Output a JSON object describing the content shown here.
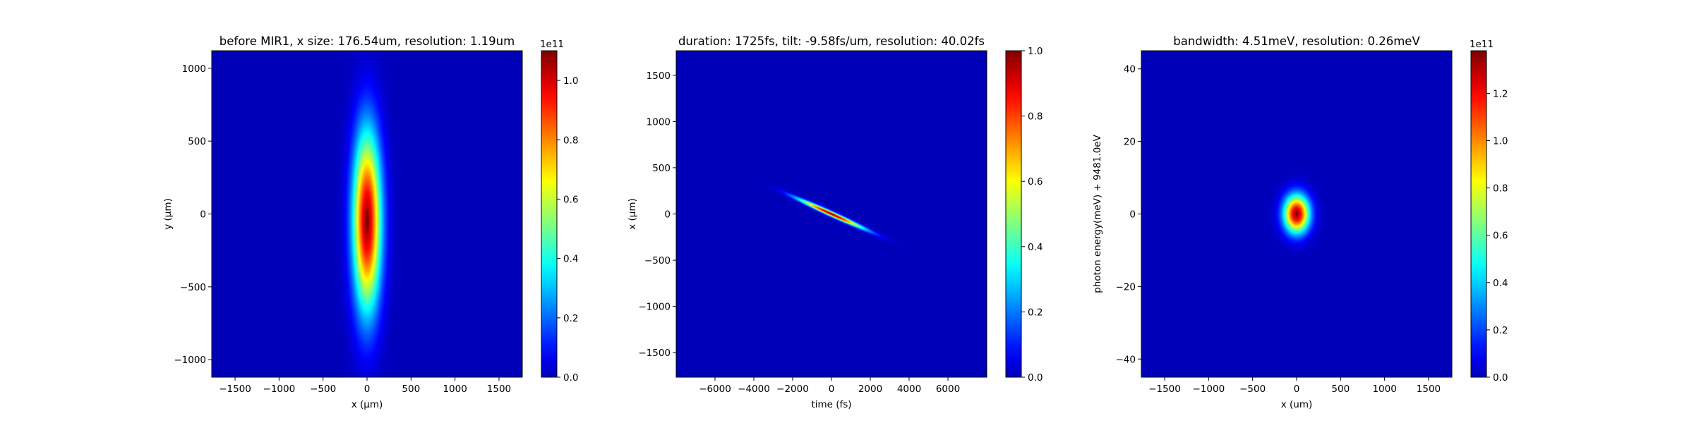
{
  "chart_data": [
    {
      "type": "heatmap",
      "title": "before MIR1, x size: 176.54um, resolution: 1.19um",
      "xlabel": "x (μm)",
      "ylabel": "y (μm)",
      "xlim": [
        -1765,
        1765
      ],
      "ylim": [
        -1120,
        1120
      ],
      "xticks": [
        -1500,
        -1000,
        -500,
        0,
        500,
        1000,
        1500
      ],
      "yticks": [
        -1000,
        -500,
        0,
        500,
        1000
      ],
      "peak": {
        "x": 0,
        "y": -50,
        "sx": 110,
        "sy": 420,
        "rho": 0
      },
      "colorbar": {
        "min": 0,
        "max": 1.1,
        "offset_label": "1e11",
        "ticks": [
          0.0,
          0.2,
          0.4,
          0.6,
          0.8,
          1.0
        ],
        "tick_labels": [
          "0.0",
          "0.2",
          "0.4",
          "0.6",
          "0.8",
          "1.0"
        ]
      },
      "colormap": "jet"
    },
    {
      "type": "heatmap",
      "title": "duration: 1725fs, tilt: -9.58fs/um, resolution: 40.02fs",
      "xlabel": "time (fs)",
      "ylabel": "x (μm)",
      "xlim": [
        -8000,
        8000
      ],
      "ylim": [
        -1765,
        1765
      ],
      "xticks": [
        -6000,
        -4000,
        -2000,
        0,
        2000,
        4000,
        6000
      ],
      "yticks": [
        -1500,
        -1000,
        -500,
        0,
        500,
        1000,
        1500
      ],
      "peak": {
        "x": 0,
        "y": 0,
        "sx": 1150,
        "sy": 110,
        "rho": -0.985
      },
      "colorbar": {
        "min": 0,
        "max": 1.0,
        "offset_label": "",
        "ticks": [
          0.0,
          0.2,
          0.4,
          0.6,
          0.8,
          1.0
        ],
        "tick_labels": [
          "0.0",
          "0.2",
          "0.4",
          "0.6",
          "0.8",
          "1.0"
        ]
      },
      "colormap": "jet"
    },
    {
      "type": "heatmap",
      "title": "bandwidth: 4.51meV, resolution: 0.26meV",
      "xlabel": "x (um)",
      "ylabel": "photon energy(meV) + 9481.0eV",
      "xlim": [
        -1765,
        1765
      ],
      "ylim": [
        -45,
        45
      ],
      "xticks": [
        -1500,
        -1000,
        -500,
        0,
        500,
        1000,
        1500
      ],
      "yticks": [
        -40,
        -20,
        0,
        20,
        40
      ],
      "peak": {
        "x": 0,
        "y": 0,
        "sx": 100,
        "sy": 3.6,
        "rho": 0
      },
      "colorbar": {
        "min": 0,
        "max": 1.38,
        "offset_label": "1e11",
        "ticks": [
          0.0,
          0.2,
          0.4,
          0.6,
          0.8,
          1.0,
          1.2
        ],
        "tick_labels": [
          "0.0",
          "0.2",
          "0.4",
          "0.6",
          "0.8",
          "1.0",
          "1.2"
        ]
      },
      "colormap": "jet"
    }
  ]
}
